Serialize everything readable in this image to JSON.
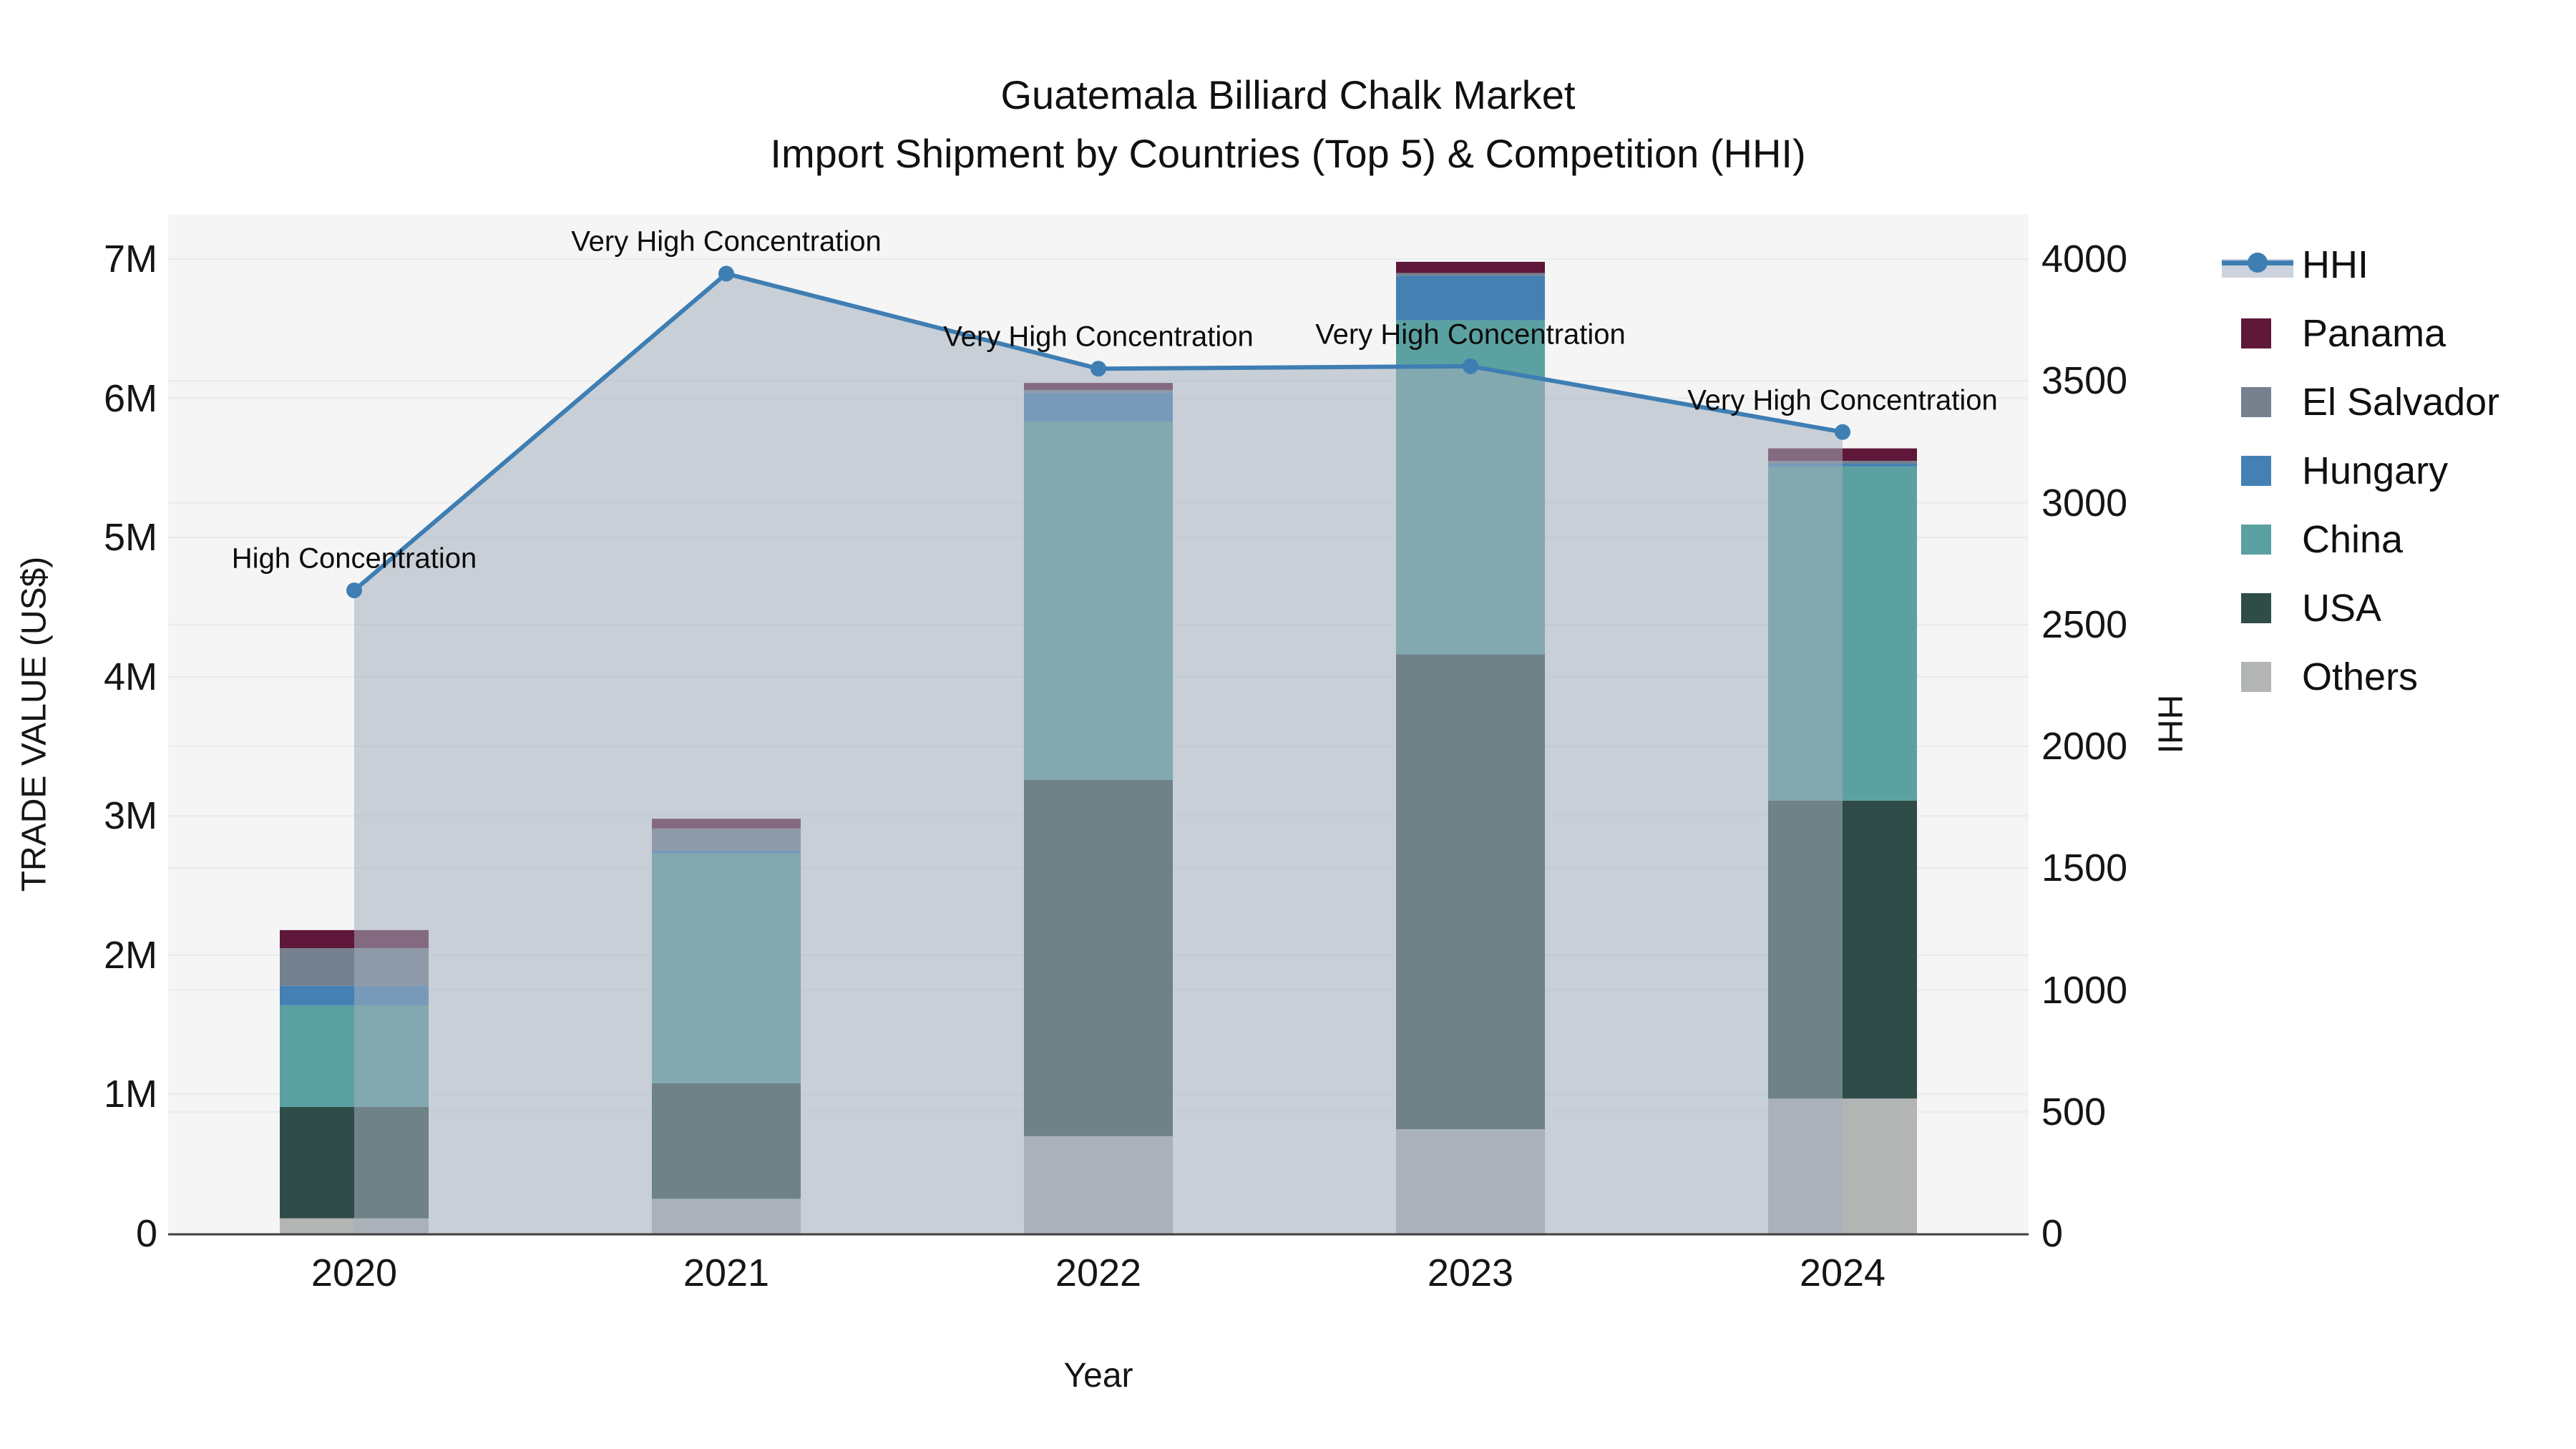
{
  "title": {
    "line1": "Guatemala Billiard Chalk Market",
    "line2": "Import Shipment by Countries (Top 5) & Competition (HHI)"
  },
  "axes": {
    "x_title": "Year",
    "y_left_title": "TRADE VALUE (US$)",
    "y_right_title": "HHI",
    "y_left_ticks": [
      "0",
      "1M",
      "2M",
      "3M",
      "4M",
      "5M",
      "6M",
      "7M"
    ],
    "y_right_ticks": [
      "0",
      "500",
      "1000",
      "1500",
      "2000",
      "2500",
      "3000",
      "3500",
      "4000"
    ],
    "x_ticks": [
      "2020",
      "2021",
      "2022",
      "2023",
      "2024"
    ]
  },
  "legend": {
    "items": [
      {
        "label": "HHI",
        "type": "line"
      },
      {
        "label": "Panama",
        "type": "swatch",
        "color": "#5f1839"
      },
      {
        "label": "El Salvador",
        "type": "swatch",
        "color": "#75818f"
      },
      {
        "label": "Hungary",
        "type": "swatch",
        "color": "#4480b4"
      },
      {
        "label": "China",
        "type": "swatch",
        "color": "#5ba1a1"
      },
      {
        "label": "USA",
        "type": "swatch",
        "color": "#2f4c48"
      },
      {
        "label": "Others",
        "type": "swatch",
        "color": "#b3b4b4"
      }
    ]
  },
  "colors": {
    "hhi_line": "#3e7eb3",
    "hhi_area": "rgba(162,174,190,0.55)",
    "legend_band": "#ccd3de",
    "plot_bg": "#f5f5f5",
    "grid": "#e9eaec",
    "axis_line": "#3f3f3f"
  },
  "chart_data": {
    "type": "bar+line",
    "title": "Guatemala Billiard Chalk Market — Import Shipment by Countries (Top 5) & Competition (HHI)",
    "categories": [
      "2020",
      "2021",
      "2022",
      "2023",
      "2024"
    ],
    "bar_unit": "millions of US$",
    "bar_series": [
      {
        "name": "Others",
        "color": "#b3b4b4",
        "values": [
          0.11,
          0.25,
          0.7,
          0.75,
          0.97
        ]
      },
      {
        "name": "USA",
        "color": "#2f4c48",
        "values": [
          0.8,
          0.83,
          2.56,
          3.41,
          2.14
        ]
      },
      {
        "name": "China",
        "color": "#5ba1a1",
        "values": [
          0.73,
          1.65,
          2.57,
          2.4,
          2.4
        ]
      },
      {
        "name": "Hungary",
        "color": "#4480b4",
        "values": [
          0.14,
          0.02,
          0.21,
          0.32,
          0.02
        ]
      },
      {
        "name": "El Salvador",
        "color": "#75818f",
        "values": [
          0.27,
          0.16,
          0.02,
          0.02,
          0.02
        ]
      },
      {
        "name": "Panama",
        "color": "#5f1839",
        "values": [
          0.13,
          0.07,
          0.05,
          0.08,
          0.09
        ]
      }
    ],
    "line_series": {
      "name": "HHI",
      "axis": "right",
      "values": [
        2640,
        3940,
        3550,
        3560,
        3290
      ]
    },
    "annotations": [
      {
        "category": "2020",
        "text": "High Concentration"
      },
      {
        "category": "2021",
        "text": "Very High Concentration"
      },
      {
        "category": "2022",
        "text": "Very High Concentration"
      },
      {
        "category": "2023",
        "text": "Very High Concentration"
      },
      {
        "category": "2024",
        "text": "Very High Concentration"
      }
    ],
    "xlabel": "Year",
    "ylabel_left": "TRADE VALUE (US$)",
    "ylabel_right": "HHI",
    "ylim_left": [
      0,
      7000000
    ],
    "ylim_right": [
      0,
      4000
    ],
    "grid": true,
    "legend_position": "right"
  }
}
